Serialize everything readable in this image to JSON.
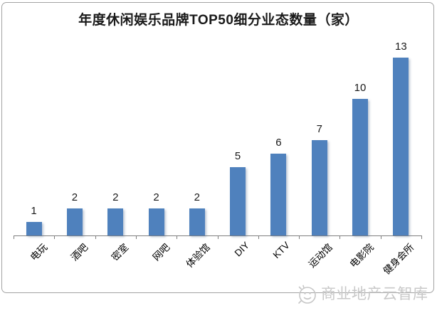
{
  "chart_data": {
    "type": "bar",
    "title": "年度休闲娱乐品牌TOP50细分业态数量（家）",
    "categories": [
      "电玩",
      "酒吧",
      "密室",
      "网吧",
      "体验馆",
      "DIY",
      "KTV",
      "运动馆",
      "电影院",
      "健身会所"
    ],
    "values": [
      1,
      2,
      2,
      2,
      2,
      5,
      6,
      7,
      10,
      13
    ],
    "xlabel": "",
    "ylabel": "",
    "ylim": [
      0,
      13
    ],
    "grid": false,
    "legend": "none",
    "x_tick_rotation": 45,
    "value_labels_shown": true,
    "bar_color": "#4F81BD"
  },
  "colors": {
    "bar": "#4F81BD",
    "axis": "#7f7f7f",
    "frame_border": "#a3a3a3",
    "title_text": "#1a1a1a",
    "watermark": "#c8c8c8"
  },
  "watermark": {
    "text": "商业地产云智库",
    "icon": "wechat-smiley-icon"
  }
}
